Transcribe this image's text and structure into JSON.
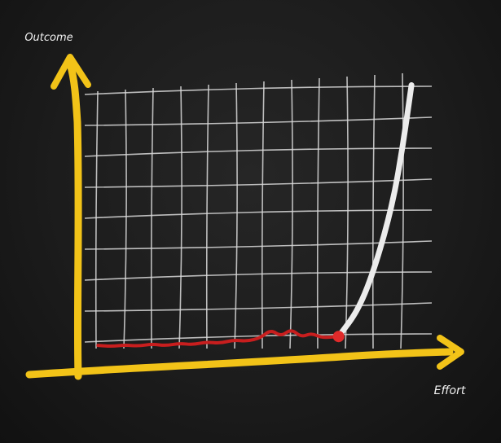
{
  "chart_data": {
    "type": "line",
    "title": "",
    "xlabel": "Effort",
    "ylabel": "Outcome",
    "xlim": [
      0,
      10
    ],
    "ylim": [
      0,
      8
    ],
    "grid": true,
    "axis_color": "#f2c318",
    "grid_color": "#d9d9d9",
    "series": [
      {
        "color": "#c81e1e",
        "points": [
          [
            0.2,
            0.14
          ],
          [
            0.6,
            0.11
          ],
          [
            1.0,
            0.15
          ],
          [
            1.4,
            0.12
          ],
          [
            1.8,
            0.18
          ],
          [
            2.2,
            0.13
          ],
          [
            2.6,
            0.2
          ],
          [
            3.0,
            0.16
          ],
          [
            3.4,
            0.24
          ],
          [
            3.8,
            0.2
          ],
          [
            4.2,
            0.3
          ],
          [
            4.6,
            0.26
          ],
          [
            5.0,
            0.36
          ],
          [
            5.3,
            0.6
          ],
          [
            5.6,
            0.4
          ],
          [
            5.9,
            0.62
          ],
          [
            6.2,
            0.38
          ],
          [
            6.5,
            0.5
          ],
          [
            6.8,
            0.36
          ],
          [
            7.3,
            0.4
          ]
        ]
      },
      {
        "color": "#ececec",
        "points": [
          [
            7.3,
            0.4
          ],
          [
            7.9,
            1.2
          ],
          [
            8.4,
            2.5
          ],
          [
            8.9,
            4.3
          ],
          [
            9.2,
            6.0
          ],
          [
            9.45,
            7.75
          ]
        ]
      }
    ],
    "marker": {
      "x": 7.3,
      "y": 0.4,
      "color": "#e02a2a"
    }
  }
}
